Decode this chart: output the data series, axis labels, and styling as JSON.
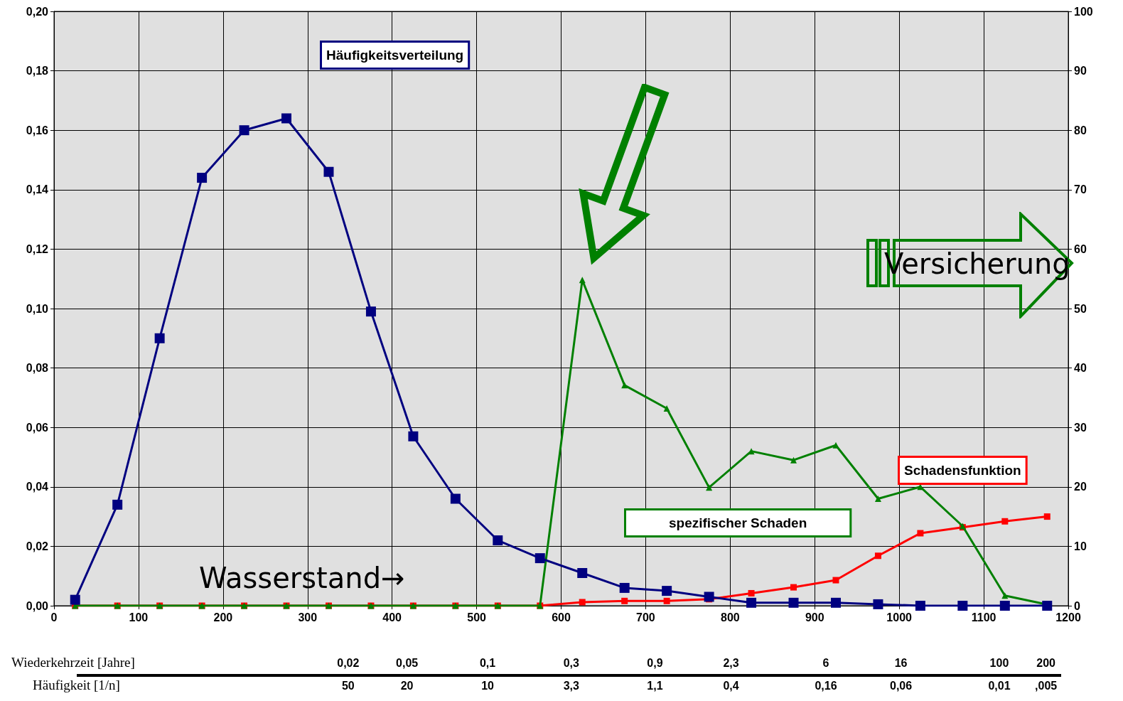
{
  "chart_data": {
    "type": "line",
    "x": [
      25,
      75,
      125,
      175,
      225,
      275,
      325,
      375,
      425,
      475,
      525,
      575,
      625,
      675,
      725,
      775,
      825,
      875,
      925,
      975,
      1025,
      1075,
      1125,
      1175
    ],
    "series": [
      {
        "name": "Häufigkeitsverteilung",
        "color": "#000080",
        "marker": "square",
        "values": [
          0.002,
          0.034,
          0.09,
          0.144,
          0.16,
          0.164,
          0.146,
          0.099,
          0.057,
          0.036,
          0.022,
          0.016,
          0.011,
          0.006,
          0.005,
          0.003,
          0.001,
          0.001,
          0.001,
          0.0005,
          0,
          0,
          0,
          0
        ]
      },
      {
        "name": "spezifischer Schaden",
        "color": "#008000",
        "marker": "triangle",
        "axis": "y2",
        "values": [
          0,
          0,
          0,
          0,
          0,
          0,
          0,
          0,
          0,
          0,
          0,
          0,
          54.8,
          37.1,
          33.2,
          19.9,
          26,
          24.5,
          27,
          18,
          20,
          13.4,
          1.7,
          0.2
        ]
      },
      {
        "name": "Schadensfunktion",
        "color": "#ff0000",
        "marker": "square",
        "axis": "y2",
        "values": [
          0,
          0,
          0,
          0,
          0,
          0,
          0,
          0,
          0,
          0,
          0,
          0,
          0.6,
          0.8,
          0.8,
          1.1,
          2.1,
          3.1,
          4.3,
          8.4,
          12.2,
          13.2,
          14.2,
          15
        ]
      }
    ],
    "xlim": [
      0,
      1200
    ],
    "xticks": [
      0,
      100,
      200,
      300,
      400,
      500,
      600,
      700,
      800,
      900,
      1000,
      1100,
      1200
    ],
    "ylim": [
      0,
      0.2
    ],
    "yticks": [
      {
        "value": 0,
        "label": "0,00"
      },
      {
        "value": 0.02,
        "label": "0,02"
      },
      {
        "value": 0.04,
        "label": "0,04"
      },
      {
        "value": 0.06,
        "label": "0,06"
      },
      {
        "value": 0.08,
        "label": "0,08"
      },
      {
        "value": 0.1,
        "label": "0,10"
      },
      {
        "value": 0.12,
        "label": "0,12"
      },
      {
        "value": 0.14,
        "label": "0,14"
      },
      {
        "value": 0.16,
        "label": "0,16"
      },
      {
        "value": 0.18,
        "label": "0,18"
      },
      {
        "value": 0.2,
        "label": "0,20"
      }
    ],
    "y2lim": [
      0,
      100
    ],
    "y2ticks": [
      0,
      10,
      20,
      30,
      40,
      50,
      60,
      70,
      80,
      90,
      100
    ],
    "annotations": [
      "Wasserstand→",
      "Versicherung",
      "Wiederkehrzeit [Jahre]",
      "0,02",
      "0,05",
      "0,1",
      "0,3",
      "0,9",
      "2,3",
      "6",
      "16",
      "100",
      "200",
      "Häufigkeit [1/n]",
      "50",
      "20",
      "10",
      "3,3",
      "1,1",
      "0,4",
      "0,16",
      "0,06",
      "0,01",
      ",005"
    ],
    "grid": true
  }
}
